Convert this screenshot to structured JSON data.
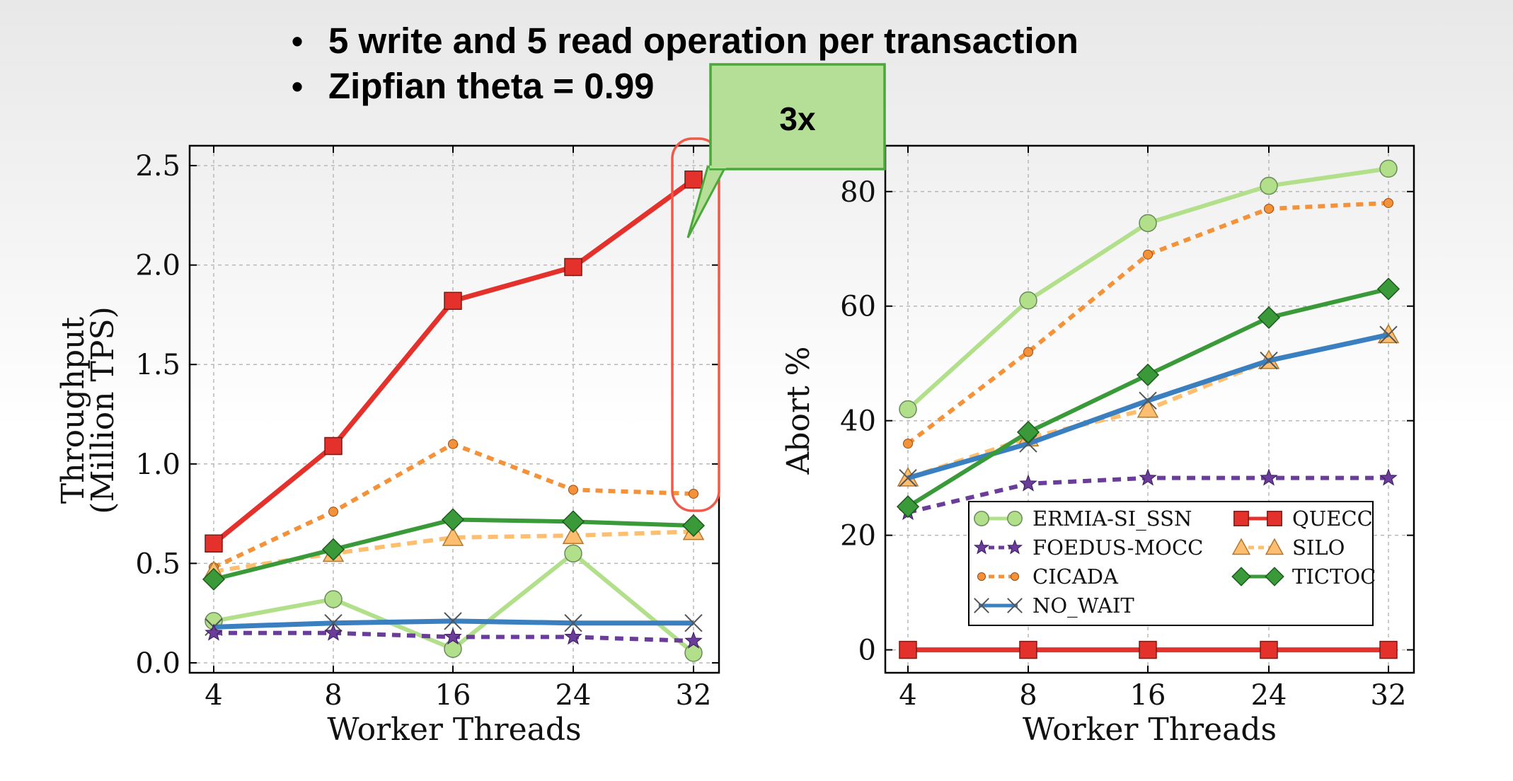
{
  "bullets": [
    "5 write and 5 read operation per transaction",
    "Zipfian theta = 0.99"
  ],
  "callout": {
    "text": "3x",
    "color": "#b5df97"
  },
  "chart_data": [
    {
      "type": "line",
      "title": "",
      "xlabel": "Worker Threads",
      "ylabel": "Throughput\n(Million TPS)",
      "ylabel_lines": [
        "Throughput",
        "(Million TPS)"
      ],
      "categories": [
        "4",
        "8",
        "16",
        "24",
        "32"
      ],
      "yticks": [
        "0.0",
        "0.5",
        "1.0",
        "1.5",
        "2.0",
        "2.5"
      ],
      "ylim": [
        -0.05,
        2.6
      ],
      "grid": true,
      "series": [
        {
          "name": "ERMIA-SI_SSN",
          "values": [
            0.21,
            0.32,
            0.07,
            0.55,
            0.05
          ]
        },
        {
          "name": "FOEDUS-MOCC",
          "values": [
            0.15,
            0.15,
            0.13,
            0.13,
            0.11
          ]
        },
        {
          "name": "CICADA",
          "values": [
            0.48,
            0.76,
            1.1,
            0.87,
            0.85
          ]
        },
        {
          "name": "NO_WAIT",
          "values": [
            0.18,
            0.2,
            0.21,
            0.2,
            0.2
          ]
        },
        {
          "name": "QUECC",
          "values": [
            0.6,
            1.09,
            1.82,
            1.99,
            2.43
          ]
        },
        {
          "name": "SILO",
          "values": [
            0.46,
            0.55,
            0.63,
            0.64,
            0.66
          ]
        },
        {
          "name": "TICTOC",
          "values": [
            0.42,
            0.57,
            0.72,
            0.71,
            0.69
          ]
        }
      ]
    },
    {
      "type": "line",
      "title": "",
      "xlabel": "Worker Threads",
      "ylabel": "Abort %",
      "categories": [
        "4",
        "8",
        "16",
        "24",
        "32"
      ],
      "yticks": [
        "0",
        "20",
        "40",
        "60",
        "80"
      ],
      "ylim": [
        -4,
        88
      ],
      "grid": true,
      "legend": "lower-right",
      "series": [
        {
          "name": "ERMIA-SI_SSN",
          "values": [
            42,
            61,
            74.5,
            81,
            84
          ]
        },
        {
          "name": "FOEDUS-MOCC",
          "values": [
            24,
            29,
            30,
            30,
            30
          ]
        },
        {
          "name": "CICADA",
          "values": [
            36,
            52,
            69,
            77,
            78
          ]
        },
        {
          "name": "NO_WAIT",
          "values": [
            30,
            36,
            43.5,
            50.5,
            55
          ]
        },
        {
          "name": "QUECC",
          "values": [
            0,
            0,
            0,
            0,
            0
          ]
        },
        {
          "name": "SILO",
          "values": [
            30,
            37,
            42,
            50.5,
            55
          ]
        },
        {
          "name": "TICTOC",
          "values": [
            25,
            38,
            48,
            58,
            63
          ]
        }
      ]
    }
  ],
  "styles": {
    "ERMIA-SI_SSN": {
      "color": "#b2df8a",
      "marker": "circle",
      "dash": ""
    },
    "FOEDUS-MOCC": {
      "color": "#6a3d9a",
      "marker": "star",
      "dash": "12 9"
    },
    "CICADA": {
      "color": "#f4923a",
      "marker": "dot",
      "dash": "10 8"
    },
    "NO_WAIT": {
      "color": "#3a7fbf",
      "marker": "x",
      "dash": ""
    },
    "QUECC": {
      "color": "#e4312b",
      "marker": "square",
      "dash": ""
    },
    "SILO": {
      "color": "#fdbf6f",
      "marker": "triangle",
      "dash": "14 9"
    },
    "TICTOC": {
      "color": "#3a9a3a",
      "marker": "diamond",
      "dash": ""
    }
  },
  "legend_order": [
    "ERMIA-SI_SSN",
    "QUECC",
    "FOEDUS-MOCC",
    "SILO",
    "CICADA",
    "TICTOC",
    "NO_WAIT"
  ]
}
